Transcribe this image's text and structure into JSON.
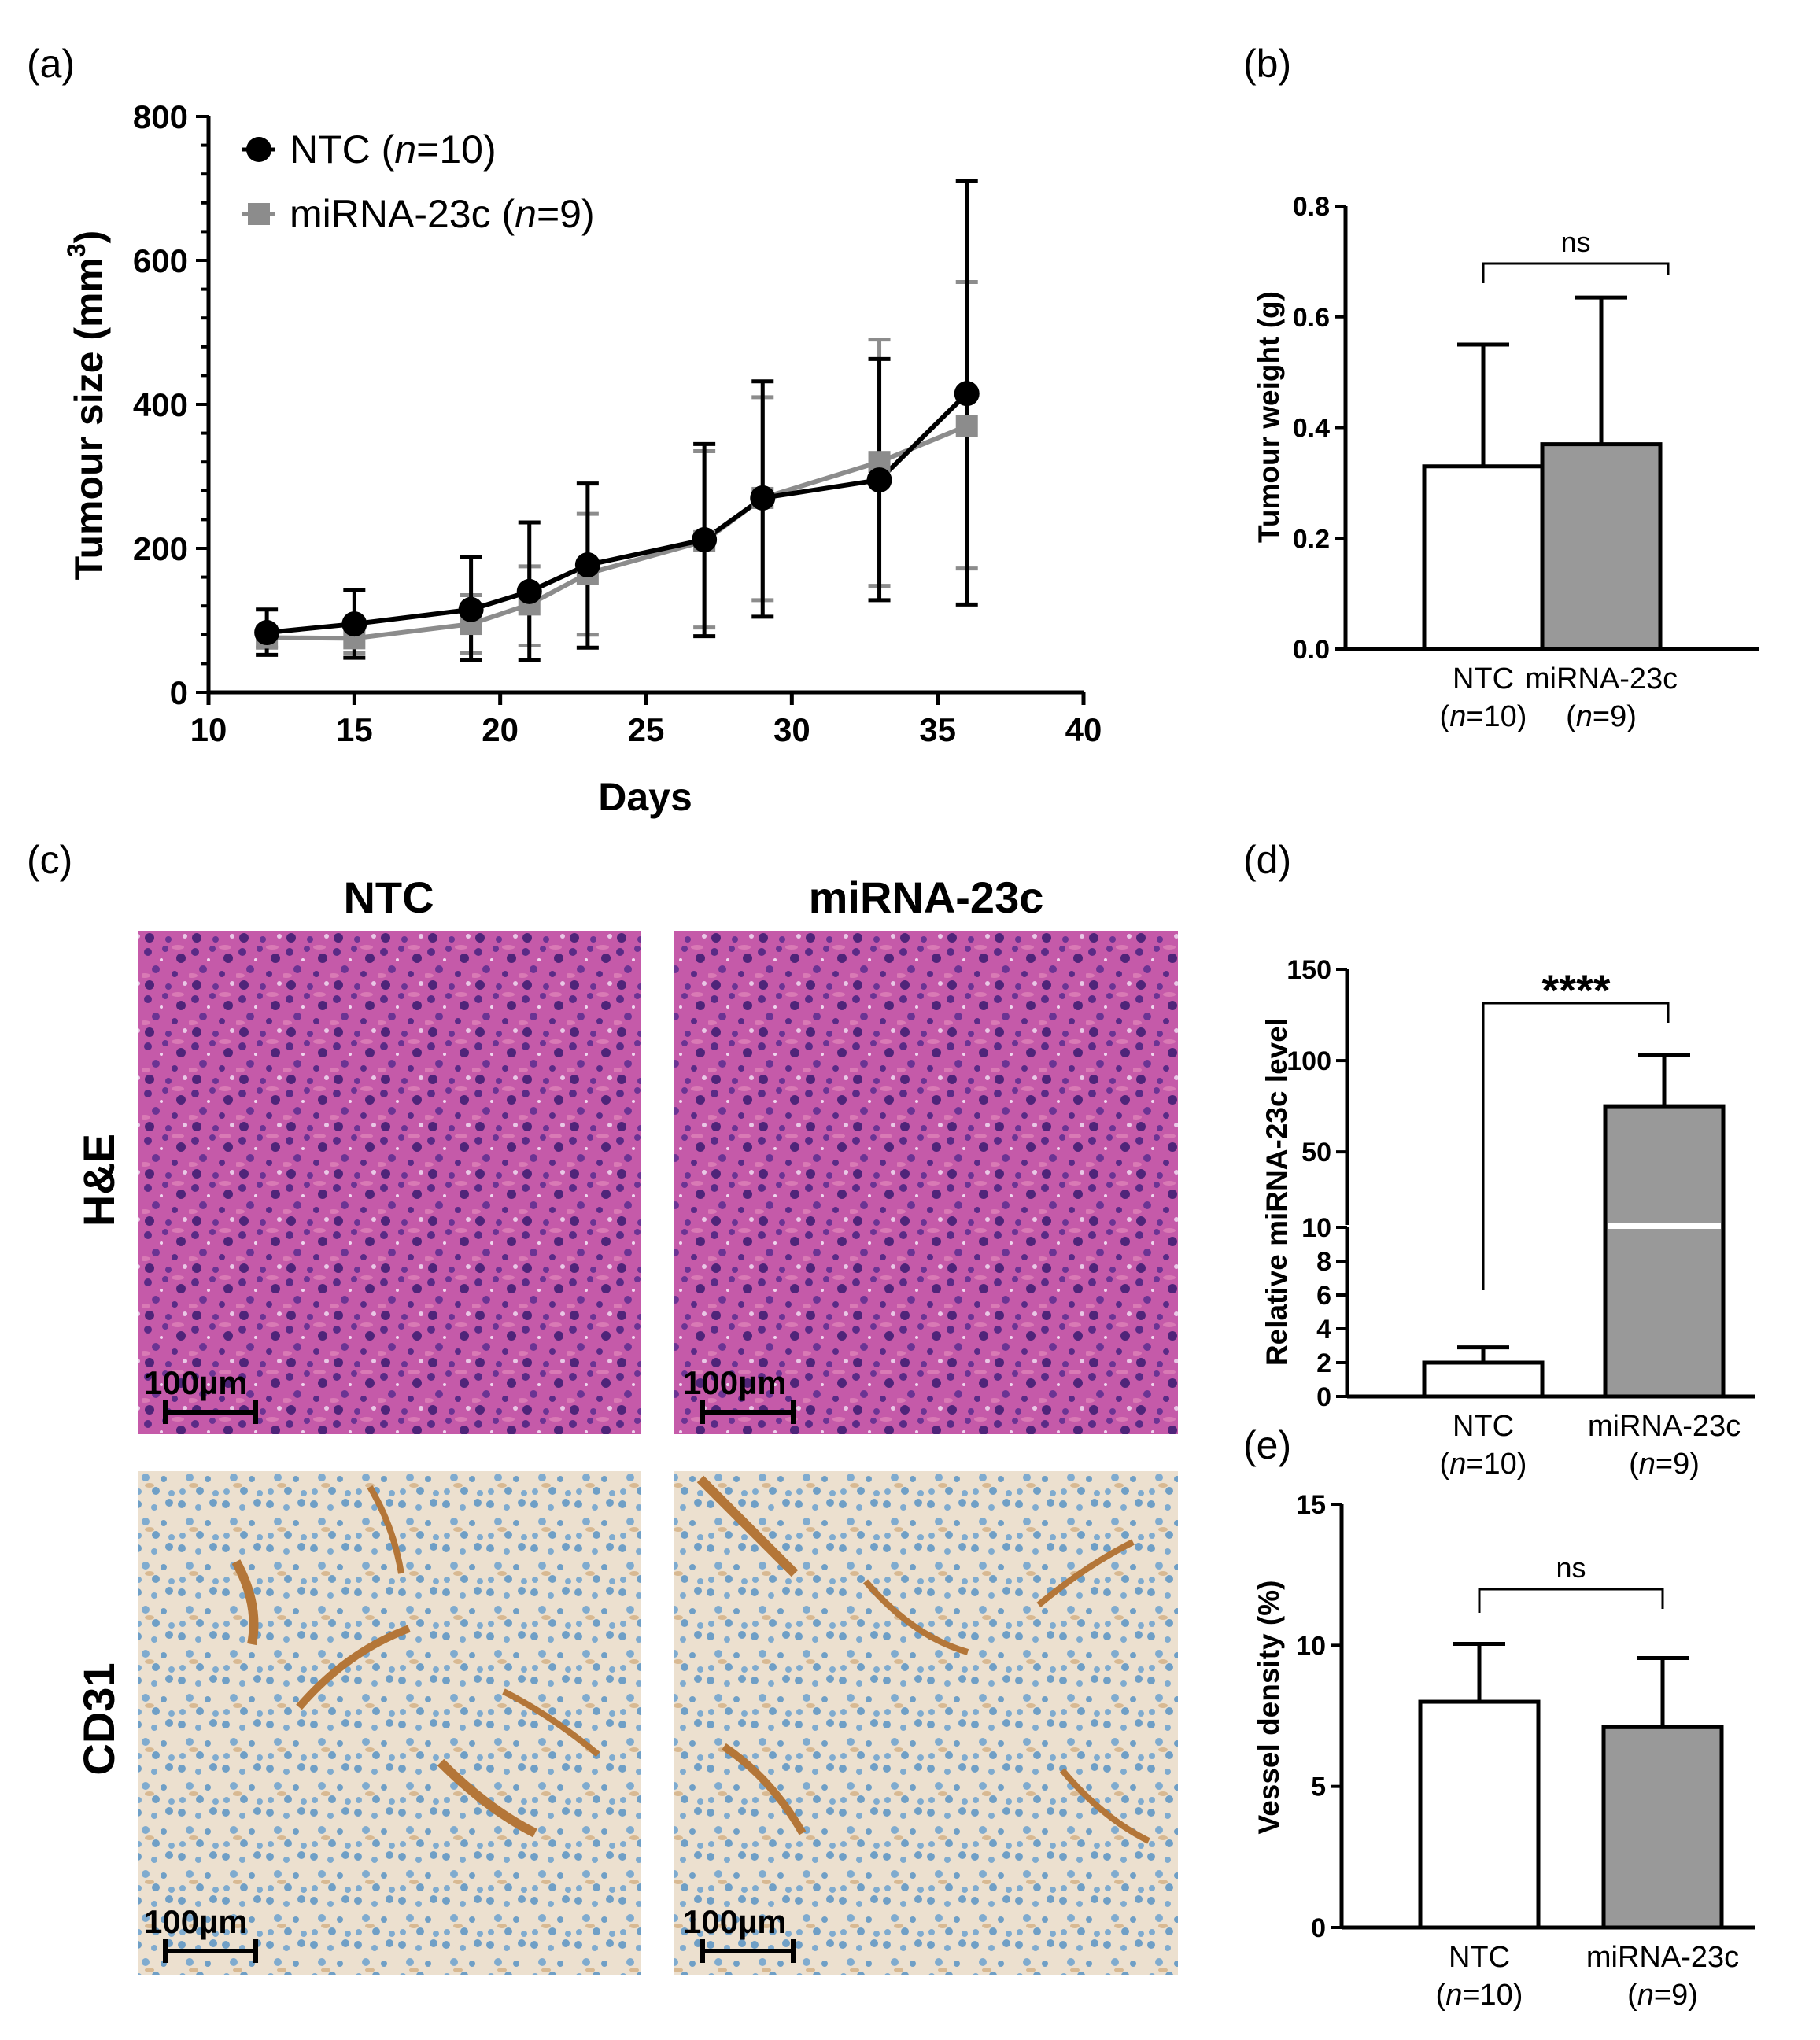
{
  "panels": {
    "a": {
      "label": "(a)"
    },
    "b": {
      "label": "(b)"
    },
    "c": {
      "label": "(c)",
      "columns": [
        "NTC",
        "miRNA-23c"
      ],
      "rows": [
        "H&E",
        "CD31"
      ],
      "scale_bar": "100µm",
      "stain_colors": {
        "he_background": "#c55aa9",
        "he_nuclei": "#5a2a86",
        "cd31_background": "#ece0cf",
        "cd31_nuclei": "#6f9fc6",
        "cd31_vessel": "#b47638"
      }
    },
    "d": {
      "label": "(d)"
    },
    "e": {
      "label": "(e)"
    }
  },
  "chart_data": [
    {
      "id": "a",
      "type": "line",
      "xlabel": "Days",
      "ylabel": "Tumour size (mm",
      "ylabel_sup": "3",
      "ylabel_close": ")",
      "xlim": [
        10,
        40
      ],
      "ylim": [
        0,
        800
      ],
      "xticks": [
        10,
        15,
        20,
        25,
        30,
        35,
        40
      ],
      "yticks": [
        0,
        200,
        400,
        600,
        800
      ],
      "x": [
        12,
        15,
        19,
        21,
        23,
        27,
        29,
        33,
        36
      ],
      "series": [
        {
          "name": "NTC",
          "n_label": "n",
          "n_value": "=10",
          "marker": "circle",
          "color": "#000000",
          "values": [
            83,
            95,
            115,
            140,
            177,
            212,
            270,
            295,
            415
          ],
          "err_low": [
            52,
            48,
            45,
            45,
            62,
            78,
            105,
            128,
            122
          ],
          "err_high": [
            115,
            142,
            188,
            236,
            290,
            345,
            432,
            463,
            710
          ]
        },
        {
          "name": "miRNA-23c",
          "n_label": "n",
          "n_value": "=9",
          "marker": "square",
          "color": "#8c8c8c",
          "values": [
            76,
            75,
            95,
            122,
            165,
            210,
            270,
            320,
            370
          ],
          "err_low": [
            62,
            55,
            55,
            65,
            80,
            90,
            128,
            148,
            172
          ],
          "err_high": [
            90,
            100,
            135,
            175,
            248,
            335,
            410,
            490,
            570
          ]
        }
      ]
    },
    {
      "id": "b",
      "type": "bar",
      "ylabel": "Tumour weight (g)",
      "ylim": [
        0,
        0.8
      ],
      "yticks": [
        "0.0",
        "0.2",
        "0.4",
        "0.6",
        "0.8"
      ],
      "categories": [
        "NTC",
        "miRNA-23c"
      ],
      "n_labels": [
        "=10",
        "=9"
      ],
      "values": [
        0.33,
        0.37
      ],
      "err_high": [
        0.55,
        0.635
      ],
      "colors": [
        "#ffffff",
        "#999999"
      ],
      "significance": "ns"
    },
    {
      "id": "d",
      "type": "bar",
      "ylabel": "Relative miRNA-23c level",
      "axis_break": [
        10,
        10
      ],
      "yticks_lower": [
        "0",
        "2",
        "4",
        "6",
        "8",
        "10"
      ],
      "yticks_upper": [
        "50",
        "100",
        "150"
      ],
      "categories": [
        "NTC",
        "miRNA-23c"
      ],
      "n_labels": [
        "=10",
        "=9"
      ],
      "values": [
        2,
        75
      ],
      "err_high": [
        2.9,
        103
      ],
      "colors": [
        "#ffffff",
        "#999999"
      ],
      "significance": "****"
    },
    {
      "id": "e",
      "type": "bar",
      "ylabel": "Vessel density (%)",
      "ylim": [
        0,
        15
      ],
      "yticks": [
        "0",
        "5",
        "10",
        "15"
      ],
      "categories": [
        "NTC",
        "miRNA-23c"
      ],
      "n_labels": [
        "=10",
        "=9"
      ],
      "values": [
        8.0,
        7.1
      ],
      "err_high": [
        10.05,
        9.55
      ],
      "colors": [
        "#ffffff",
        "#999999"
      ],
      "significance": "ns"
    }
  ]
}
